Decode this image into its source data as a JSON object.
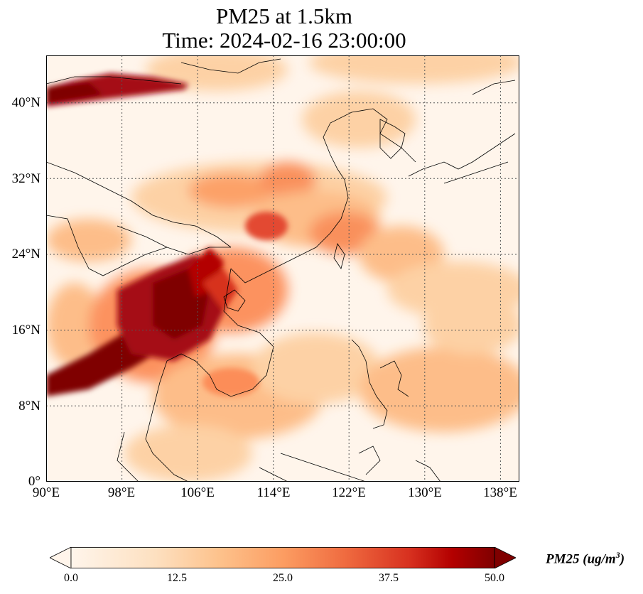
{
  "title": {
    "line1": "PM25 at 1.5km",
    "line2": "Time: 2024-02-16 23:00:00"
  },
  "map": {
    "extent_lon": [
      90,
      140
    ],
    "extent_lat": [
      0,
      45
    ],
    "lon_ticks": [
      "90°E",
      "98°E",
      "106°E",
      "114°E",
      "122°E",
      "130°E",
      "138°E"
    ],
    "lat_ticks": [
      "0°",
      "8°N",
      "16°N",
      "24°N",
      "32°N",
      "40°N"
    ],
    "colors": {
      "low": "#fff5eb",
      "light": "#fdd0a2",
      "mid": "#fd8d3c",
      "high": "#d94801",
      "max": "#7f0000"
    }
  },
  "colorbar": {
    "label_prefix": "PM25 (ug/m",
    "label_suffix": ")",
    "label_sup": "3",
    "ticks": [
      "0.0",
      "12.5",
      "25.0",
      "37.5",
      "50.0"
    ],
    "min": 0,
    "max": 50,
    "extend": "both",
    "colormap": "OrRd"
  }
}
